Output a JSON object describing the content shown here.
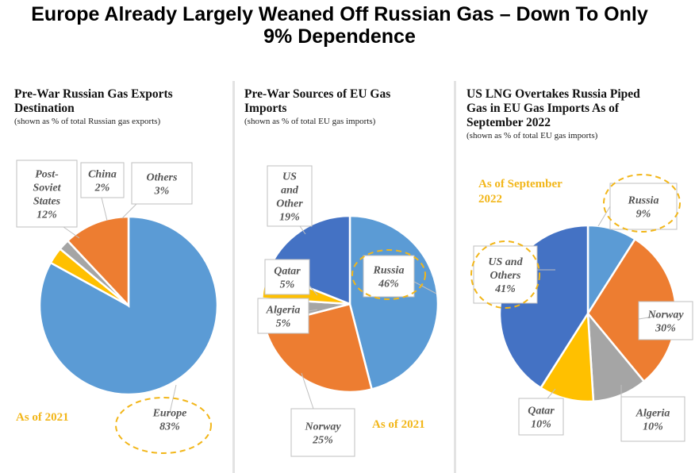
{
  "title_line1": "Europe Already Largely Weaned Off Russian Gas – Down To Only",
  "title_line2": "9% Dependence",
  "panels": [
    {
      "title_lines": [
        "Pre-War Russian Gas Exports",
        "Destination"
      ],
      "subtitle": "(shown as % of total Russian gas exports)",
      "as_of": "As of 2021"
    },
    {
      "title_lines": [
        "Pre-War Sources of EU Gas",
        "Imports"
      ],
      "subtitle": "(shown as % of total EU gas imports)",
      "as_of": "As of 2021"
    },
    {
      "title_lines": [
        "US LNG Overtakes Russia Piped",
        "Gas in EU Gas Imports As of",
        "September 2022"
      ],
      "subtitle": "(shown as % of total EU gas imports)",
      "as_of_lines": [
        "As of September",
        "2022"
      ]
    }
  ],
  "colors": {
    "russia_blue": "#5b9bd5",
    "orange": "#ed7d31",
    "gray": "#a5a5a5",
    "gold": "#ffc000",
    "dark_blue": "#4472c4",
    "as_of": "#f2b619"
  },
  "chart_data": [
    {
      "type": "pie",
      "title": "Pre-War Russian Gas Exports Destination",
      "slices": [
        {
          "label_lines": [
            "Europe",
            "83%"
          ],
          "name": "Europe",
          "value": 83,
          "color": "#5b9bd5"
        },
        {
          "label_lines": [
            "Post-",
            "Soviet",
            "States",
            "12%"
          ],
          "name": "Post-Soviet States",
          "value": 12,
          "color": "#ed7d31"
        },
        {
          "label_lines": [
            "China",
            "2%"
          ],
          "name": "China",
          "value": 2,
          "color": "#a5a5a5"
        },
        {
          "label_lines": [
            "Others",
            "3%"
          ],
          "name": "Others",
          "value": 3,
          "color": "#ffc000"
        }
      ]
    },
    {
      "type": "pie",
      "title": "Pre-War Sources of EU Gas Imports",
      "slices": [
        {
          "label_lines": [
            "Russia",
            "46%"
          ],
          "name": "Russia",
          "value": 46,
          "color": "#5b9bd5"
        },
        {
          "label_lines": [
            "Norway",
            "25%"
          ],
          "name": "Norway",
          "value": 25,
          "color": "#ed7d31"
        },
        {
          "label_lines": [
            "Algeria",
            "5%"
          ],
          "name": "Algeria",
          "value": 5,
          "color": "#a5a5a5"
        },
        {
          "label_lines": [
            "Qatar",
            "5%"
          ],
          "name": "Qatar",
          "value": 5,
          "color": "#ffc000"
        },
        {
          "label_lines": [
            "US",
            "and",
            "Other",
            "19%"
          ],
          "name": "US and Other",
          "value": 19,
          "color": "#4472c4"
        }
      ]
    },
    {
      "type": "pie",
      "title": "US LNG Overtakes Russia Piped Gas in EU Gas Imports As of September 2022",
      "slices": [
        {
          "label_lines": [
            "Russia",
            "9%"
          ],
          "name": "Russia",
          "value": 9,
          "color": "#5b9bd5"
        },
        {
          "label_lines": [
            "Norway",
            "30%"
          ],
          "name": "Norway",
          "value": 30,
          "color": "#ed7d31"
        },
        {
          "label_lines": [
            "Algeria",
            "10%"
          ],
          "name": "Algeria",
          "value": 10,
          "color": "#a5a5a5"
        },
        {
          "label_lines": [
            "Qatar",
            "10%"
          ],
          "name": "Qatar",
          "value": 10,
          "color": "#ffc000"
        },
        {
          "label_lines": [
            "US and",
            "Others",
            "41%"
          ],
          "name": "US and Others",
          "value": 41,
          "color": "#4472c4"
        }
      ]
    }
  ]
}
